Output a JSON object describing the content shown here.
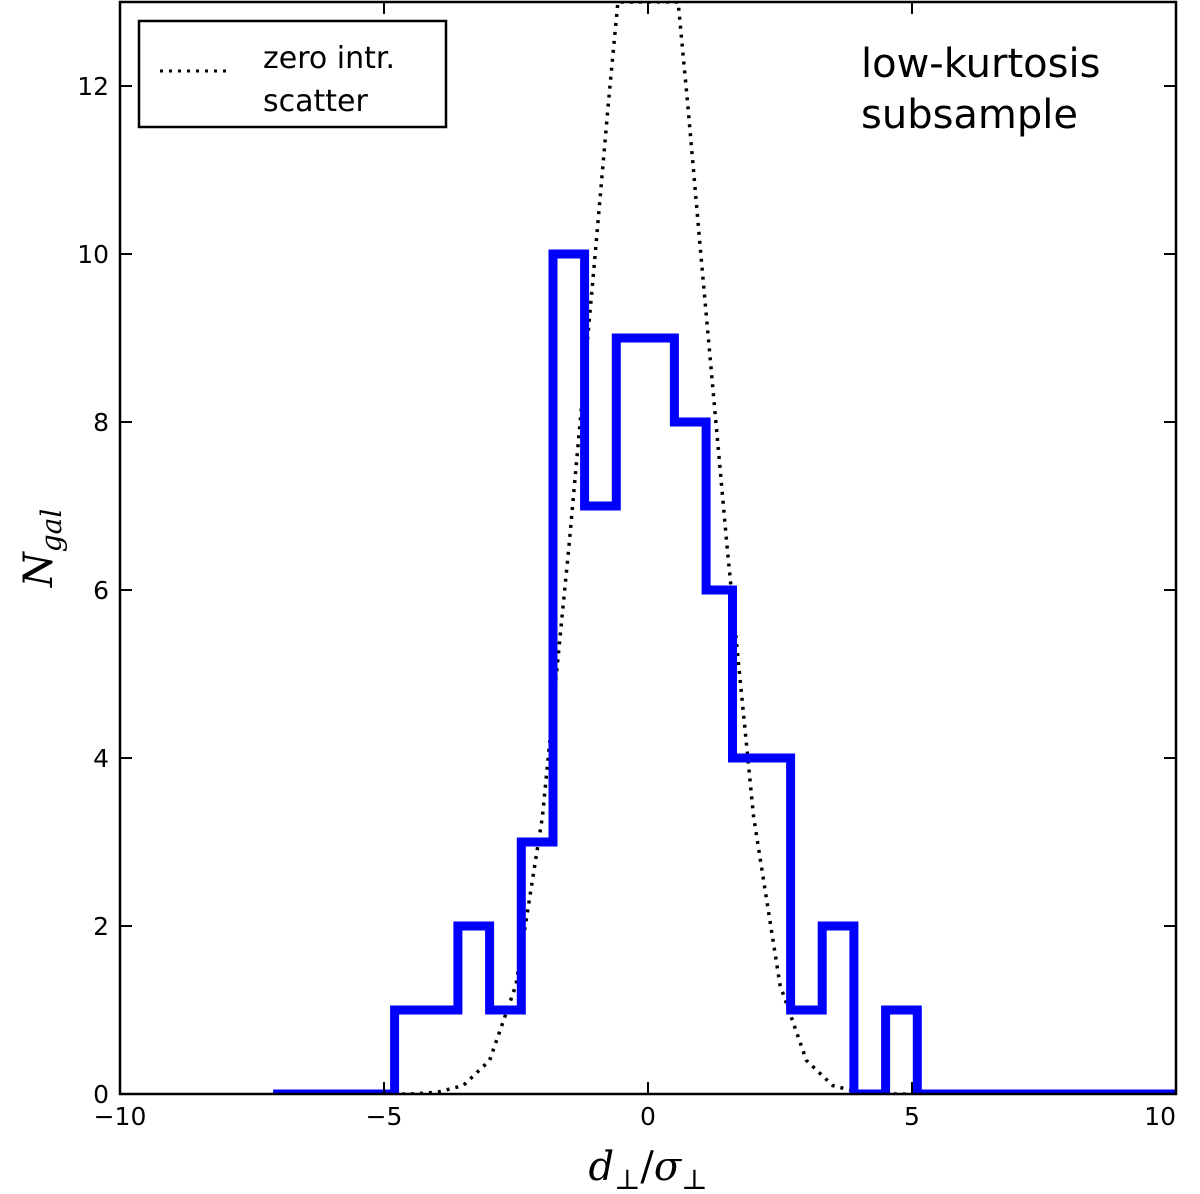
{
  "chart_data": {
    "type": "histogram",
    "annotation": [
      "low-kurtosis",
      "subsample"
    ],
    "xlabel": {
      "base": "d",
      "sub": "⊥",
      "slash": "/",
      "base2": "σ",
      "sub2": "⊥"
    },
    "ylabel": {
      "base": "N",
      "sub": "gal"
    },
    "xlim": [
      -10,
      10
    ],
    "ylim": [
      0,
      13
    ],
    "xticks": [
      -10,
      -5,
      0,
      5,
      10
    ],
    "xtick_labels": [
      "−10",
      "−5",
      "0",
      "5",
      "10"
    ],
    "yticks": [
      0,
      2,
      4,
      6,
      8,
      10,
      12
    ],
    "ytick_labels": [
      "0",
      "2",
      "4",
      "6",
      "8",
      "10",
      "12"
    ],
    "grid": false,
    "legend": {
      "placement": "top-left",
      "entries": [
        {
          "label_lines": [
            "zero intr.",
            "scatter"
          ],
          "style": "dotted",
          "color": "#000000"
        }
      ]
    },
    "series": [
      {
        "style": "step",
        "color": "#0000ff",
        "bin_edges": [
          -7.1,
          -4.8,
          -3.6,
          -3.0,
          -2.4,
          -1.8,
          -1.2,
          -0.6,
          0.5,
          1.1,
          1.6,
          2.7,
          3.3,
          3.9,
          4.5,
          5.1,
          10.0
        ],
        "counts": [
          0,
          1,
          2,
          1,
          3,
          10,
          7,
          9,
          8,
          6,
          4,
          1,
          2,
          0,
          1,
          0
        ]
      }
    ],
    "reference_curve": {
      "label": "zero intr. scatter",
      "style": "dotted",
      "color": "#000000",
      "shape": "gaussian",
      "mean": 0,
      "sigma": 1.0,
      "x_range": [
        -5,
        5
      ],
      "curve_values": [
        [
          -5.0,
          0.0
        ],
        [
          -4.5,
          0.0
        ],
        [
          -4.0,
          0.02
        ],
        [
          -3.5,
          0.1
        ],
        [
          -3.0,
          0.4
        ],
        [
          -2.5,
          1.3
        ],
        [
          -2.0,
          3.3
        ],
        [
          -1.5,
          6.5
        ],
        [
          -1.0,
          10.0
        ],
        [
          -0.75,
          11.8
        ],
        [
          -0.57,
          13.0
        ],
        [
          0.57,
          13.0
        ],
        [
          0.75,
          11.8
        ],
        [
          1.0,
          10.0
        ],
        [
          1.5,
          6.5
        ],
        [
          2.0,
          3.3
        ],
        [
          2.5,
          1.3
        ],
        [
          3.0,
          0.4
        ],
        [
          3.5,
          0.1
        ],
        [
          4.0,
          0.02
        ],
        [
          4.5,
          0.0
        ],
        [
          5.0,
          0.0
        ]
      ]
    }
  }
}
